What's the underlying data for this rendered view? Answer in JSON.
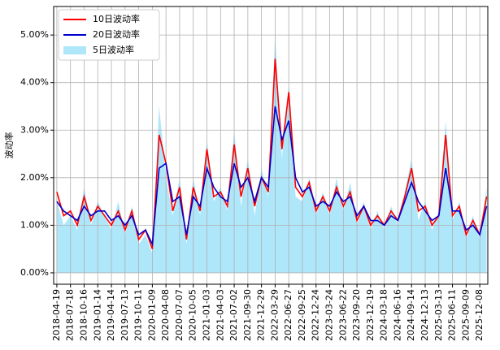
{
  "chart_data": {
    "type": "line",
    "ylabel": "波动率",
    "x": [
      "2018-04-19",
      "2018-06-03",
      "2018-07-18",
      "2018-09-01",
      "2018-10-16",
      "2018-11-30",
      "2019-01-14",
      "2019-02-28",
      "2019-04-14",
      "2019-05-29",
      "2019-07-13",
      "2019-08-27",
      "2019-10-11",
      "2019-11-25",
      "2020-01-09",
      "2020-02-23",
      "2020-04-08",
      "2020-05-23",
      "2020-07-07",
      "2020-08-21",
      "2020-10-05",
      "2020-11-19",
      "2021-01-03",
      "2021-02-17",
      "2021-04-03",
      "2021-05-18",
      "2021-07-02",
      "2021-08-16",
      "2021-09-30",
      "2021-11-14",
      "2021-12-29",
      "2022-02-12",
      "2022-03-29",
      "2022-05-13",
      "2022-06-27",
      "2022-08-11",
      "2022-09-25",
      "2022-11-09",
      "2022-12-24",
      "2023-02-07",
      "2023-03-24",
      "2023-05-08",
      "2023-06-22",
      "2023-08-06",
      "2023-09-20",
      "2023-11-04",
      "2023-12-19",
      "2024-02-02",
      "2024-03-18",
      "2024-05-02",
      "2024-06-16",
      "2024-07-31",
      "2024-09-14",
      "2024-10-29",
      "2024-12-13",
      "2025-01-27",
      "2025-03-13",
      "2025-04-27",
      "2025-06-11",
      "2025-07-26",
      "2025-09-09",
      "2025-10-24",
      "2025-12-08",
      "2026-01-22"
    ],
    "series": [
      {
        "name": "10日波动率",
        "color": "#ff0000",
        "style": "line",
        "values": [
          1.7,
          1.2,
          1.3,
          1.0,
          1.6,
          1.1,
          1.4,
          1.2,
          1.0,
          1.3,
          0.9,
          1.3,
          0.7,
          0.9,
          0.5,
          2.9,
          2.3,
          1.3,
          1.8,
          0.7,
          1.8,
          1.3,
          2.6,
          1.6,
          1.7,
          1.4,
          2.7,
          1.6,
          2.2,
          1.4,
          2.0,
          1.7,
          4.5,
          2.6,
          3.8,
          1.8,
          1.6,
          1.9,
          1.3,
          1.6,
          1.3,
          1.8,
          1.4,
          1.7,
          1.1,
          1.4,
          1.0,
          1.2,
          1.0,
          1.3,
          1.1,
          1.6,
          2.2,
          1.3,
          1.4,
          1.0,
          1.2,
          2.9,
          1.2,
          1.4,
          0.8,
          1.1,
          0.8,
          1.6
        ]
      },
      {
        "name": "20日波动率",
        "color": "#0000cc",
        "style": "line",
        "values": [
          1.5,
          1.3,
          1.2,
          1.1,
          1.4,
          1.2,
          1.3,
          1.3,
          1.1,
          1.2,
          1.0,
          1.2,
          0.8,
          0.9,
          0.6,
          2.2,
          2.3,
          1.5,
          1.6,
          0.8,
          1.6,
          1.4,
          2.2,
          1.8,
          1.6,
          1.5,
          2.3,
          1.8,
          2.0,
          1.5,
          2.0,
          1.8,
          3.5,
          2.8,
          3.2,
          2.0,
          1.7,
          1.8,
          1.4,
          1.5,
          1.4,
          1.7,
          1.5,
          1.6,
          1.2,
          1.4,
          1.1,
          1.1,
          1.0,
          1.2,
          1.1,
          1.5,
          1.9,
          1.5,
          1.3,
          1.1,
          1.2,
          2.2,
          1.3,
          1.3,
          0.9,
          1.0,
          0.8,
          1.4
        ]
      },
      {
        "name": "5日波动率",
        "color": "#aee6fa",
        "style": "area",
        "values": [
          1.5,
          1.0,
          1.2,
          0.9,
          1.8,
          1.0,
          1.5,
          1.2,
          0.9,
          1.5,
          0.8,
          1.4,
          0.6,
          0.8,
          0.4,
          3.5,
          2.0,
          1.2,
          2.0,
          0.6,
          2.0,
          1.2,
          2.8,
          1.5,
          1.8,
          1.3,
          3.0,
          1.4,
          2.4,
          1.2,
          2.2,
          1.6,
          5.0,
          2.4,
          4.0,
          1.6,
          1.5,
          2.0,
          1.2,
          1.7,
          1.2,
          2.0,
          1.3,
          1.9,
          1.0,
          1.5,
          0.9,
          1.3,
          0.9,
          1.4,
          1.0,
          1.7,
          2.4,
          1.1,
          1.5,
          0.9,
          1.3,
          3.2,
          1.1,
          1.5,
          0.7,
          1.2,
          0.7,
          1.8
        ]
      }
    ],
    "xlim": [
      "2018-03-29",
      "2026-01-30"
    ],
    "xticks": [
      "2018-04-19",
      "2018-07-18",
      "2018-10-16",
      "2019-01-14",
      "2019-04-14",
      "2019-07-13",
      "2019-10-11",
      "2020-01-09",
      "2020-04-08",
      "2020-07-07",
      "2020-10-05",
      "2021-01-03",
      "2021-04-03",
      "2021-07-02",
      "2021-09-30",
      "2021-12-29",
      "2022-03-29",
      "2022-06-27",
      "2022-09-25",
      "2022-12-24",
      "2023-03-24",
      "2023-06-22",
      "2023-09-20",
      "2023-12-19",
      "2024-03-18",
      "2024-06-16",
      "2024-09-14",
      "2024-12-13",
      "2025-03-13",
      "2025-06-11",
      "2025-09-09",
      "2025-12-08"
    ],
    "ylim": [
      -0.24,
      5.6
    ],
    "yticks": [
      {
        "value": 0,
        "label": "0.00%"
      },
      {
        "value": 1,
        "label": "1.00%"
      },
      {
        "value": 2,
        "label": "2.00%"
      },
      {
        "value": 3,
        "label": "3.00%"
      },
      {
        "value": 4,
        "label": "4.00%"
      },
      {
        "value": 5,
        "label": "5.00%"
      }
    ],
    "grid": true,
    "legend": "upper-left"
  }
}
